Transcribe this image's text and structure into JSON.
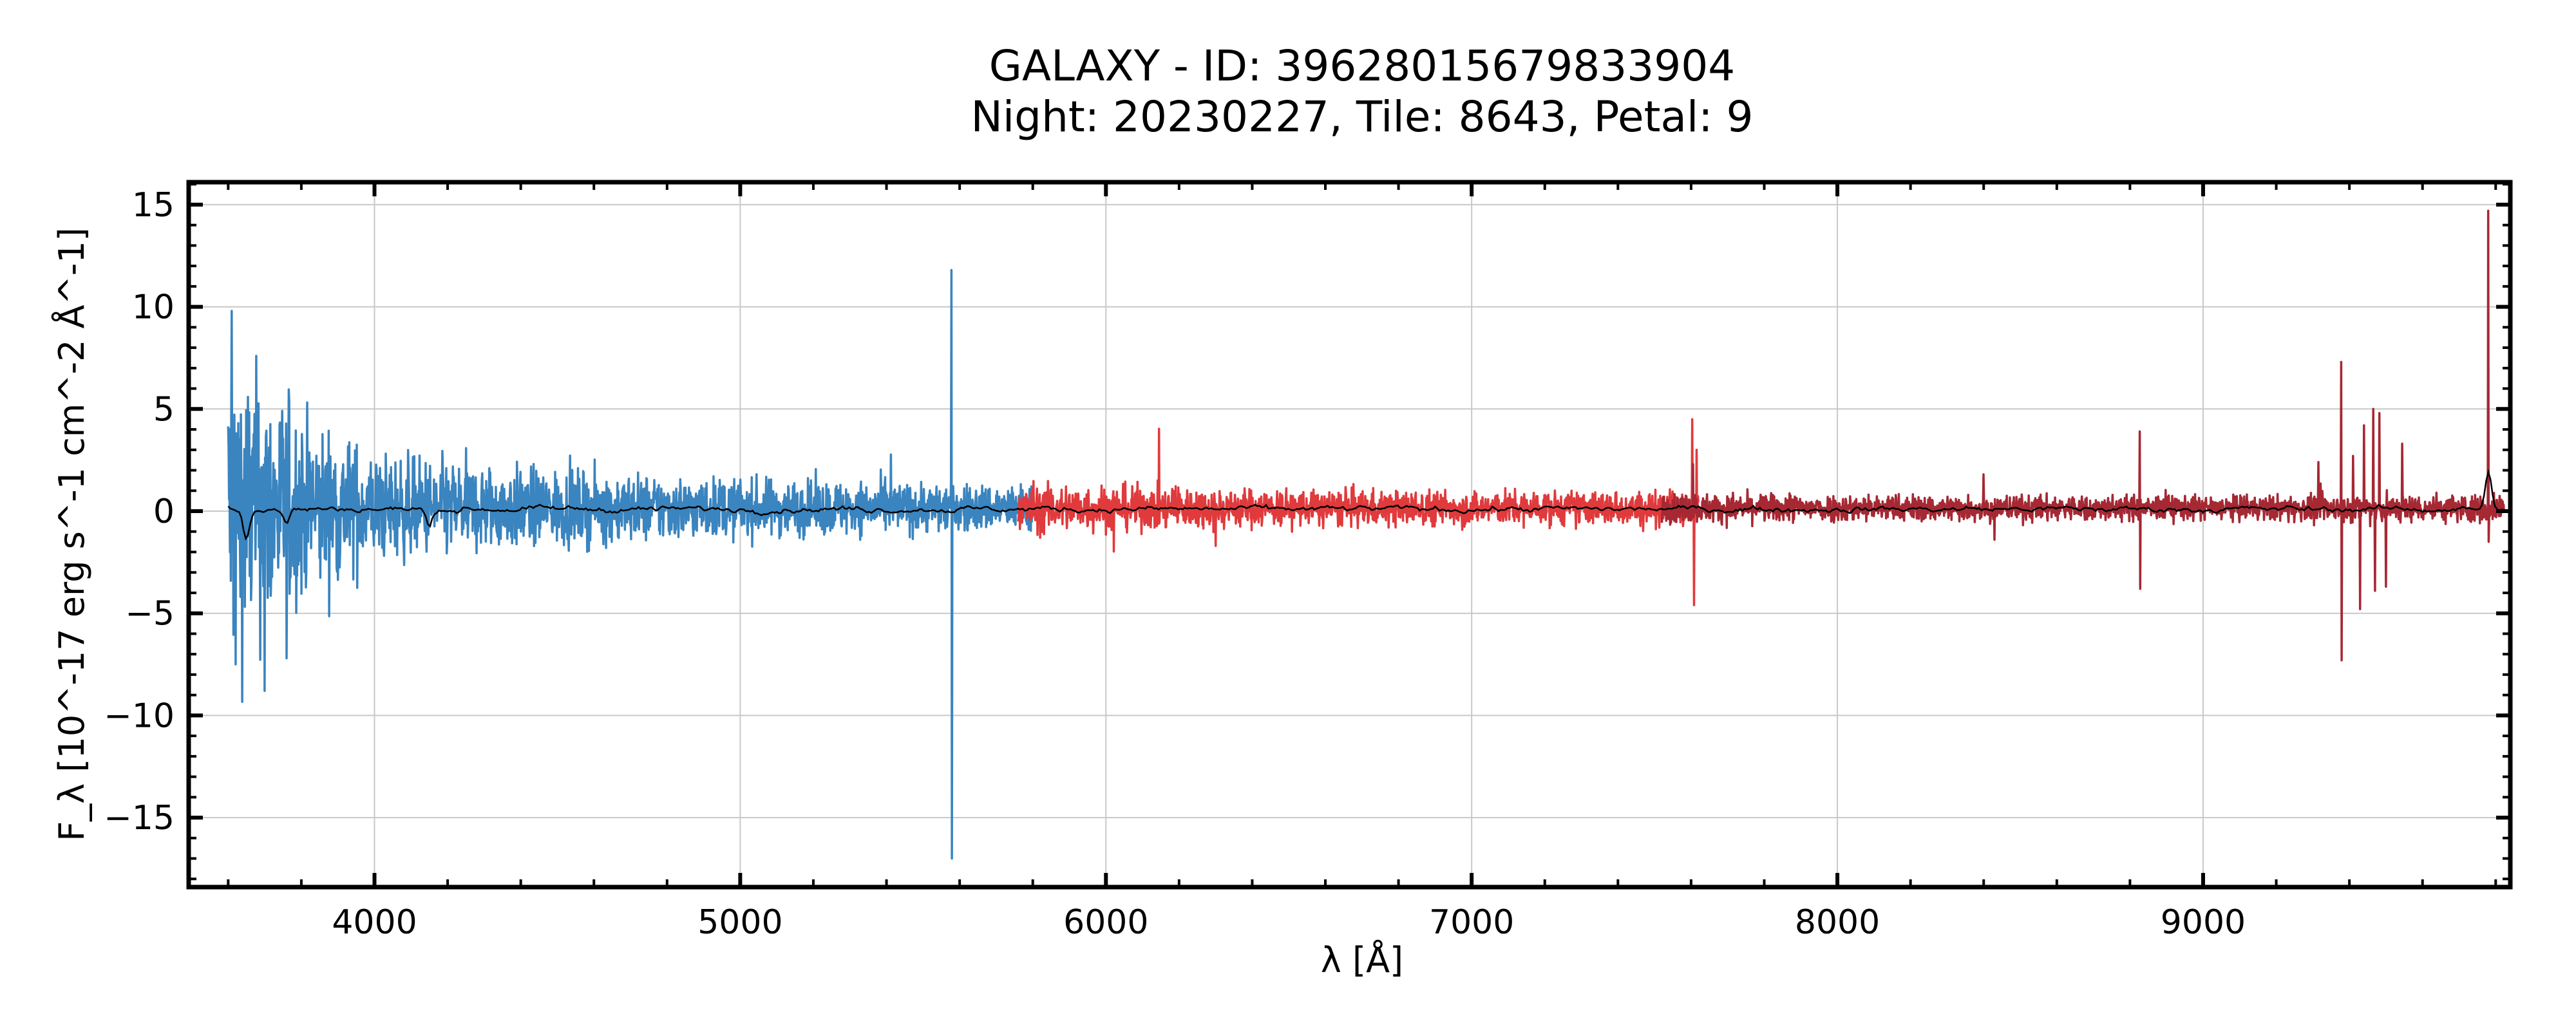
{
  "chart_data": {
    "type": "line",
    "title": [
      "GALAXY - ID: 39628015679833904",
      "Night: 20230227, Tile: 8643, Petal: 9"
    ],
    "xlabel": "λ [Å]",
    "ylabel": "F_λ [10^-17 erg s^-1 cm^-2 Å^-1]",
    "xlim": [
      3492,
      9840
    ],
    "ylim": [
      -18.4,
      16.1
    ],
    "xticks": [
      4000,
      5000,
      6000,
      7000,
      8000,
      9000
    ],
    "yticks": [
      -15,
      -10,
      -5,
      0,
      5,
      10,
      15
    ],
    "grid": true,
    "series": [
      {
        "name": "b",
        "color": "#3a84bf",
        "x_range": [
          3600,
          5800
        ],
        "noise_profile": [
          [
            3600,
            4.0
          ],
          [
            3800,
            2.2
          ],
          [
            4000,
            1.3
          ],
          [
            4500,
            0.9
          ],
          [
            5000,
            0.7
          ],
          [
            5800,
            0.55
          ]
        ],
        "spikes": [
          [
            3610,
            9.8
          ],
          [
            3620,
            -7.5
          ],
          [
            3700,
            -8.8
          ],
          [
            3760,
            -7.2
          ],
          [
            5578,
            11.8
          ],
          [
            5579,
            -17.0
          ]
        ]
      },
      {
        "name": "r",
        "color": "#e03a3c",
        "x_range": [
          5760,
          7620
        ],
        "noise_profile": [
          [
            5760,
            0.6
          ],
          [
            6500,
            0.45
          ],
          [
            7620,
            0.4
          ]
        ],
        "spikes": [
          [
            6300,
            -1.7
          ],
          [
            7603,
            4.5
          ],
          [
            7608,
            -4.6
          ],
          [
            7615,
            3.0
          ]
        ]
      },
      {
        "name": "z",
        "color": "#a52833",
        "x_range": [
          7520,
          9824
        ],
        "noise_profile": [
          [
            7520,
            0.35
          ],
          [
            9000,
            0.3
          ],
          [
            9824,
            0.35
          ]
        ],
        "spikes": [
          [
            7605,
            2.3
          ],
          [
            8827,
            3.9
          ],
          [
            8828,
            -3.8
          ],
          [
            8400,
            1.8
          ],
          [
            8430,
            -1.4
          ],
          [
            9315,
            2.4
          ],
          [
            9378,
            7.3
          ],
          [
            9379,
            -7.3
          ],
          [
            9410,
            2.7
          ],
          [
            9430,
            -4.8
          ],
          [
            9440,
            4.2
          ],
          [
            9465,
            5.0
          ],
          [
            9470,
            -3.9
          ],
          [
            9482,
            4.8
          ],
          [
            9500,
            -3.7
          ],
          [
            9545,
            3.3
          ],
          [
            9780,
            14.7
          ],
          [
            9781,
            -1.5
          ]
        ]
      },
      {
        "name": "model",
        "color": "#000000",
        "x_range": [
          3600,
          9824
        ],
        "features": [
          [
            3650,
            -1.4
          ],
          [
            3760,
            -0.7
          ],
          [
            4150,
            -0.9
          ],
          [
            9780,
            1.7
          ]
        ]
      }
    ]
  }
}
